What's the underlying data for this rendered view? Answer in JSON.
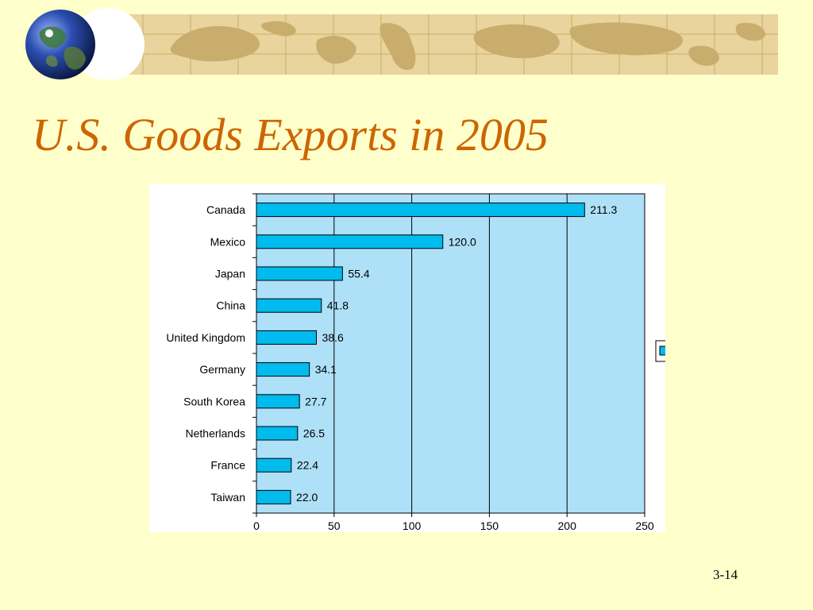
{
  "slide": {
    "title": "U.S. Goods Exports in 2005",
    "page_number": "3-14"
  },
  "colors": {
    "background": "#FFFFCC",
    "title": "#CC6600",
    "banner": "#E8D49C",
    "plot_area": "#AEE0F8",
    "bar_fill": "#00BBEE"
  },
  "chart_data": {
    "type": "bar",
    "orientation": "horizontal",
    "categories": [
      "Canada",
      "Mexico",
      "Japan",
      "China",
      "United Kingdom",
      "Germany",
      "South Korea",
      "Netherlands",
      "France",
      "Taiwan"
    ],
    "values": [
      211.3,
      120.0,
      55.4,
      41.8,
      38.6,
      34.1,
      27.7,
      26.5,
      22.4,
      22.0
    ],
    "value_labels": [
      "211.3",
      "120.0",
      "55.4",
      "41.8",
      "38.6",
      "34.1",
      "27.7",
      "26.5",
      "22.4",
      "22.0"
    ],
    "x_ticks": [
      0,
      50,
      100,
      150,
      200,
      250
    ],
    "xlim": [
      0,
      250
    ],
    "grid": true,
    "legend": "right"
  }
}
